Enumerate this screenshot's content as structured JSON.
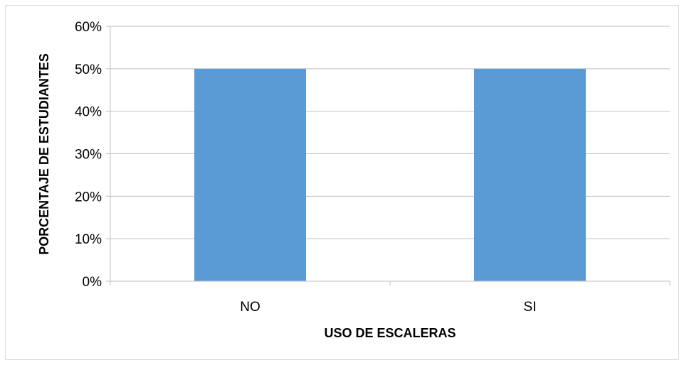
{
  "chart_data": {
    "type": "bar",
    "categories": [
      "NO",
      "SI"
    ],
    "values": [
      0.5,
      0.5
    ],
    "xlabel": "USO DE ESCALERAS",
    "ylabel": "PORCENTAJE DE ESTUDIANTES",
    "ylim": [
      0,
      0.6
    ],
    "yticks": [
      "0%",
      "10%",
      "20%",
      "30%",
      "40%",
      "50%",
      "60%"
    ],
    "grid": true,
    "legend": "none",
    "bar_color": "#5b9bd5",
    "grid_color": "#bfbfbf",
    "axis_color": "#bfbfbf"
  }
}
